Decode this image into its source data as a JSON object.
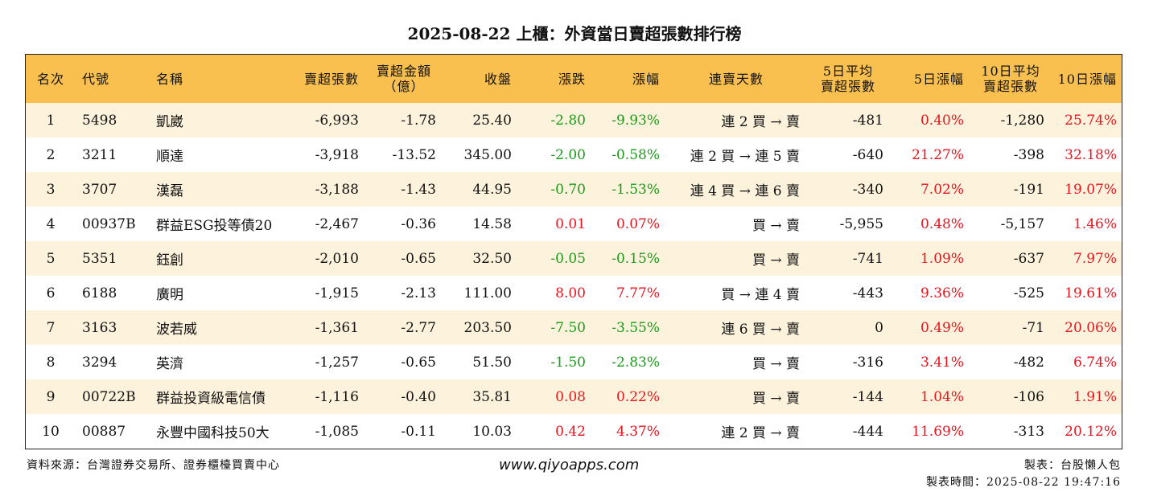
{
  "title": "2025-08-22 上櫃：外資當日賣超張數排行榜",
  "columns": {
    "rank": "名次",
    "code": "代號",
    "name": "名稱",
    "sell_qty": "賣超張數",
    "sell_amt_l1": "賣超金額",
    "sell_amt_l2": "（億）",
    "close": "收盤",
    "change": "漲跌",
    "pct": "漲幅",
    "streak": "連賣天數",
    "avg5_l1": "5日平均",
    "avg5_l2": "賣超張數",
    "pct5": "5日漲幅",
    "avg10_l1": "10日平均",
    "avg10_l2": "賣超張數",
    "pct10": "10日漲幅"
  },
  "rows": [
    {
      "rank": "1",
      "code": "5498",
      "name": "凱崴",
      "sell_qty": "-6,993",
      "sell_amt": "-1.78",
      "close": "25.40",
      "change": "-2.80",
      "pct": "-9.93%",
      "streak": "連 2 買 → 賣",
      "avg5": "-481",
      "pct5": "0.40%",
      "avg10": "-1,280",
      "pct10": "25.74%"
    },
    {
      "rank": "2",
      "code": "3211",
      "name": "順達",
      "sell_qty": "-3,918",
      "sell_amt": "-13.52",
      "close": "345.00",
      "change": "-2.00",
      "pct": "-0.58%",
      "streak": "連 2 買 → 連 5 賣",
      "avg5": "-640",
      "pct5": "21.27%",
      "avg10": "-398",
      "pct10": "32.18%"
    },
    {
      "rank": "3",
      "code": "3707",
      "name": "漢磊",
      "sell_qty": "-3,188",
      "sell_amt": "-1.43",
      "close": "44.95",
      "change": "-0.70",
      "pct": "-1.53%",
      "streak": "連 4 買 → 連 6 賣",
      "avg5": "-340",
      "pct5": "7.02%",
      "avg10": "-191",
      "pct10": "19.07%"
    },
    {
      "rank": "4",
      "code": "00937B",
      "name": "群益ESG投等債20",
      "sell_qty": "-2,467",
      "sell_amt": "-0.36",
      "close": "14.58",
      "change": "0.01",
      "pct": "0.07%",
      "streak": "買 → 賣",
      "avg5": "-5,955",
      "pct5": "0.48%",
      "avg10": "-5,157",
      "pct10": "1.46%"
    },
    {
      "rank": "5",
      "code": "5351",
      "name": "鈺創",
      "sell_qty": "-2,010",
      "sell_amt": "-0.65",
      "close": "32.50",
      "change": "-0.05",
      "pct": "-0.15%",
      "streak": "買 → 賣",
      "avg5": "-741",
      "pct5": "1.09%",
      "avg10": "-637",
      "pct10": "7.97%"
    },
    {
      "rank": "6",
      "code": "6188",
      "name": "廣明",
      "sell_qty": "-1,915",
      "sell_amt": "-2.13",
      "close": "111.00",
      "change": "8.00",
      "pct": "7.77%",
      "streak": "買 → 連 4 賣",
      "avg5": "-443",
      "pct5": "9.36%",
      "avg10": "-525",
      "pct10": "19.61%"
    },
    {
      "rank": "7",
      "code": "3163",
      "name": "波若威",
      "sell_qty": "-1,361",
      "sell_amt": "-2.77",
      "close": "203.50",
      "change": "-7.50",
      "pct": "-3.55%",
      "streak": "連 6 買 → 賣",
      "avg5": "0",
      "pct5": "0.49%",
      "avg10": "-71",
      "pct10": "20.06%"
    },
    {
      "rank": "8",
      "code": "3294",
      "name": "英濟",
      "sell_qty": "-1,257",
      "sell_amt": "-0.65",
      "close": "51.50",
      "change": "-1.50",
      "pct": "-2.83%",
      "streak": "買 → 賣",
      "avg5": "-316",
      "pct5": "3.41%",
      "avg10": "-482",
      "pct10": "6.74%"
    },
    {
      "rank": "9",
      "code": "00722B",
      "name": "群益投資級電信債",
      "sell_qty": "-1,116",
      "sell_amt": "-0.40",
      "close": "35.81",
      "change": "0.08",
      "pct": "0.22%",
      "streak": "買 → 賣",
      "avg5": "-144",
      "pct5": "1.04%",
      "avg10": "-106",
      "pct10": "1.91%"
    },
    {
      "rank": "10",
      "code": "00887",
      "name": "永豐中國科技50大",
      "sell_qty": "-1,085",
      "sell_amt": "-0.11",
      "close": "10.03",
      "change": "0.42",
      "pct": "4.37%",
      "streak": "連 2 買 → 賣",
      "avg5": "-444",
      "pct5": "11.69%",
      "avg10": "-313",
      "pct10": "20.12%"
    }
  ],
  "footer": {
    "source": "資料來源：台灣證券交易所、證券櫃檯買賣中心",
    "site": "www.qiyoapps.com",
    "maker": "製表：台股懶人包",
    "made_at": "製表時間：2025-08-22 19:47:16"
  },
  "colors": {
    "header_bg": "#f9bf4f",
    "row_alt": "#fdf3dc",
    "up": "#e8141e",
    "down": "#1a9a1a"
  }
}
